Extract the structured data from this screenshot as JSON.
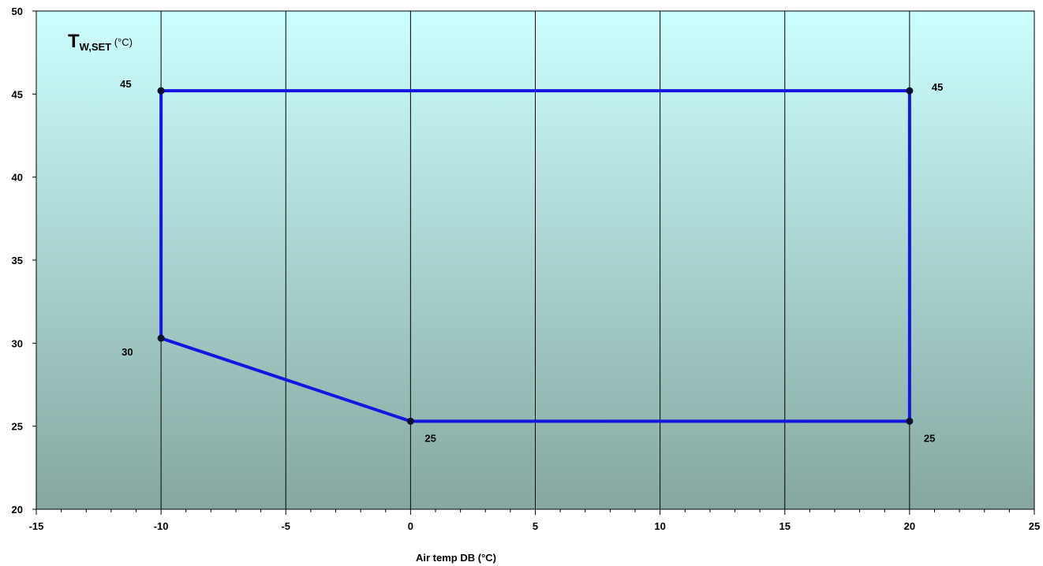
{
  "chart_data": {
    "type": "line",
    "title": "",
    "xlabel": "Air temp DB (°C)",
    "ylabel": {
      "main": "T",
      "sub": "W,SET",
      "unit": " (°C)"
    },
    "xlim": [
      -15,
      25
    ],
    "ylim": [
      20,
      50
    ],
    "x_ticks": [
      -15,
      -10,
      -5,
      0,
      5,
      10,
      15,
      20,
      25
    ],
    "y_ticks": [
      20,
      25,
      30,
      35,
      40,
      45,
      50
    ],
    "grid": {
      "vertical": true,
      "horizontal": false
    },
    "background": {
      "top": "#ccffff",
      "bottom": "#86a7a0"
    },
    "series": [
      {
        "color": "#1515e0",
        "points": [
          {
            "x": -10,
            "y": 45.2
          },
          {
            "x": 20,
            "y": 45.2
          },
          {
            "x": 20,
            "y": 25.3
          },
          {
            "x": 0,
            "y": 25.3
          },
          {
            "x": -10,
            "y": 30.3
          },
          {
            "x": -10,
            "y": 45.2
          }
        ]
      }
    ],
    "annotations": [
      {
        "text": "45",
        "x": -10,
        "y": 45.2,
        "pos": "upper-left"
      },
      {
        "text": "45",
        "x": 20,
        "y": 45.2,
        "pos": "upper-right"
      },
      {
        "text": "30",
        "x": -10,
        "y": 30.3,
        "pos": "lower-left"
      },
      {
        "text": "25",
        "x": 0,
        "y": 25.3,
        "pos": "lower-right"
      },
      {
        "text": "25",
        "x": 20,
        "y": 25.3,
        "pos": "lower-right"
      }
    ]
  }
}
